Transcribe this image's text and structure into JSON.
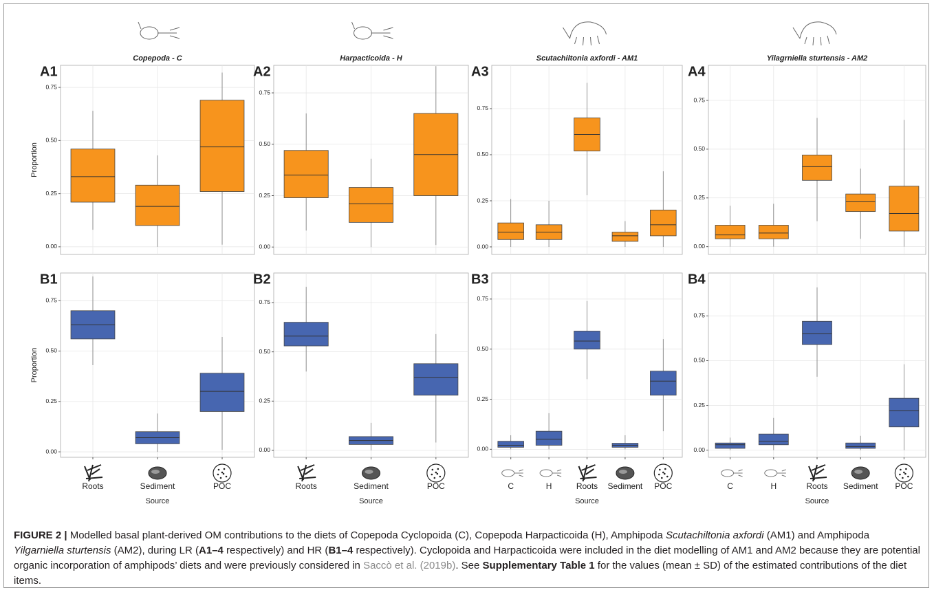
{
  "chart_data": [
    {
      "type": "box",
      "panel": "A1",
      "title": "Copepoda - C",
      "ylabel": "Proportion",
      "color": "#f7941d",
      "categories": [
        "Roots",
        "Sediment",
        "POC"
      ],
      "ylim": [
        -0.036,
        0.854
      ],
      "yticks": [
        {
          "value": 0,
          "label": "0.00"
        },
        {
          "value": 0.25,
          "label": "0.25"
        },
        {
          "value": 0.5,
          "label": "0.50"
        },
        {
          "value": 0.75,
          "label": "0.75"
        }
      ],
      "boxes": [
        {
          "low": 0.08,
          "q1": 0.21,
          "median": 0.33,
          "q3": 0.46,
          "high": 0.64
        },
        {
          "low": 0.0,
          "q1": 0.1,
          "median": 0.19,
          "q3": 0.29,
          "high": 0.43
        },
        {
          "low": 0.01,
          "q1": 0.26,
          "median": 0.47,
          "q3": 0.69,
          "high": 0.82
        }
      ]
    },
    {
      "type": "box",
      "panel": "A2",
      "title": "Harpacticoida - H",
      "color": "#f7941d",
      "categories": [
        "Roots",
        "Sediment",
        "POC"
      ],
      "ylim": [
        -0.036,
        0.884
      ],
      "yticks": [
        {
          "value": 0,
          "label": "0.00"
        },
        {
          "value": 0.25,
          "label": "0.25"
        },
        {
          "value": 0.5,
          "label": "0.50"
        },
        {
          "value": 0.75,
          "label": "0.75"
        }
      ],
      "boxes": [
        {
          "low": 0.08,
          "q1": 0.24,
          "median": 0.35,
          "q3": 0.47,
          "high": 0.65
        },
        {
          "low": 0.0,
          "q1": 0.12,
          "median": 0.21,
          "q3": 0.29,
          "high": 0.43
        },
        {
          "low": 0.01,
          "q1": 0.25,
          "median": 0.45,
          "q3": 0.65,
          "high": 0.88
        }
      ]
    },
    {
      "type": "box",
      "panel": "A3",
      "title": "Scutachiltonia axfordi - AM1",
      "color": "#f7941d",
      "categories": [
        "C",
        "H",
        "Roots",
        "Sediment",
        "POC"
      ],
      "ylim": [
        -0.041,
        0.985
      ],
      "yticks": [
        {
          "value": 0,
          "label": "0.00"
        },
        {
          "value": 0.25,
          "label": "0.25"
        },
        {
          "value": 0.5,
          "label": "0.50"
        },
        {
          "value": 0.75,
          "label": "0.75"
        }
      ],
      "boxes": [
        {
          "low": 0.0,
          "q1": 0.04,
          "median": 0.08,
          "q3": 0.13,
          "high": 0.26
        },
        {
          "low": 0.0,
          "q1": 0.04,
          "median": 0.08,
          "q3": 0.12,
          "high": 0.25
        },
        {
          "low": 0.28,
          "q1": 0.52,
          "median": 0.61,
          "q3": 0.7,
          "high": 0.89
        },
        {
          "low": 0.0,
          "q1": 0.03,
          "median": 0.06,
          "q3": 0.08,
          "high": 0.14
        },
        {
          "low": 0.0,
          "q1": 0.06,
          "median": 0.12,
          "q3": 0.2,
          "high": 0.41
        }
      ]
    },
    {
      "type": "box",
      "panel": "A4",
      "title": "Yilagrniella sturtensis - AM2",
      "color": "#f7941d",
      "categories": [
        "C",
        "H",
        "Roots",
        "Sediment",
        "POC"
      ],
      "ylim": [
        -0.04,
        0.93
      ],
      "yticks": [
        {
          "value": 0,
          "label": "0.00"
        },
        {
          "value": 0.25,
          "label": "0.25"
        },
        {
          "value": 0.5,
          "label": "0.50"
        },
        {
          "value": 0.75,
          "label": "0.75"
        }
      ],
      "boxes": [
        {
          "low": 0.0,
          "q1": 0.04,
          "median": 0.06,
          "q3": 0.11,
          "high": 0.21
        },
        {
          "low": 0.0,
          "q1": 0.04,
          "median": 0.07,
          "q3": 0.11,
          "high": 0.22
        },
        {
          "low": 0.13,
          "q1": 0.34,
          "median": 0.41,
          "q3": 0.47,
          "high": 0.66
        },
        {
          "low": 0.04,
          "q1": 0.18,
          "median": 0.23,
          "q3": 0.27,
          "high": 0.4
        },
        {
          "low": 0.0,
          "q1": 0.08,
          "median": 0.17,
          "q3": 0.31,
          "high": 0.65
        }
      ]
    },
    {
      "type": "box",
      "panel": "B1",
      "ylabel": "Proportion",
      "xlabel": "Source",
      "color": "#4766b0",
      "categories": [
        "Roots",
        "Sediment",
        "POC"
      ],
      "ylim": [
        -0.027,
        0.887
      ],
      "yticks": [
        {
          "value": 0,
          "label": "0.00"
        },
        {
          "value": 0.25,
          "label": "0.25"
        },
        {
          "value": 0.5,
          "label": "0.50"
        },
        {
          "value": 0.75,
          "label": "0.75"
        }
      ],
      "boxes": [
        {
          "low": 0.43,
          "q1": 0.56,
          "median": 0.63,
          "q3": 0.7,
          "high": 0.87
        },
        {
          "low": 0.0,
          "q1": 0.04,
          "median": 0.07,
          "q3": 0.1,
          "high": 0.19
        },
        {
          "low": 0.01,
          "q1": 0.2,
          "median": 0.3,
          "q3": 0.39,
          "high": 0.57
        }
      ]
    },
    {
      "type": "box",
      "panel": "B2",
      "xlabel": "Source",
      "color": "#4766b0",
      "categories": [
        "Roots",
        "Sediment",
        "POC"
      ],
      "ylim": [
        -0.035,
        0.9
      ],
      "yticks": [
        {
          "value": 0,
          "label": "0.00"
        },
        {
          "value": 0.25,
          "label": "0.25"
        },
        {
          "value": 0.5,
          "label": "0.50"
        },
        {
          "value": 0.75,
          "label": "0.75"
        }
      ],
      "boxes": [
        {
          "low": 0.4,
          "q1": 0.53,
          "median": 0.58,
          "q3": 0.65,
          "high": 0.83
        },
        {
          "low": 0.0,
          "q1": 0.03,
          "median": 0.05,
          "q3": 0.07,
          "high": 0.14
        },
        {
          "low": 0.04,
          "q1": 0.28,
          "median": 0.37,
          "q3": 0.44,
          "high": 0.59
        }
      ]
    },
    {
      "type": "box",
      "panel": "B3",
      "xlabel": "Source",
      "color": "#4766b0",
      "categories": [
        "C",
        "H",
        "Roots",
        "Sediment",
        "POC"
      ],
      "ylim": [
        -0.04,
        0.88
      ],
      "yticks": [
        {
          "value": 0,
          "label": "0.00"
        },
        {
          "value": 0.25,
          "label": "0.25"
        },
        {
          "value": 0.5,
          "label": "0.50"
        },
        {
          "value": 0.75,
          "label": "0.75"
        }
      ],
      "boxes": [
        {
          "low": 0.0,
          "q1": 0.01,
          "median": 0.02,
          "q3": 0.04,
          "high": 0.07
        },
        {
          "low": 0.0,
          "q1": 0.02,
          "median": 0.05,
          "q3": 0.09,
          "high": 0.18
        },
        {
          "low": 0.35,
          "q1": 0.5,
          "median": 0.54,
          "q3": 0.59,
          "high": 0.74
        },
        {
          "low": 0.0,
          "q1": 0.01,
          "median": 0.02,
          "q3": 0.03,
          "high": 0.07
        },
        {
          "low": 0.09,
          "q1": 0.27,
          "median": 0.34,
          "q3": 0.39,
          "high": 0.55
        }
      ]
    },
    {
      "type": "box",
      "panel": "B4",
      "xlabel": "Source",
      "color": "#4766b0",
      "categories": [
        "C",
        "H",
        "Roots",
        "Sediment",
        "POC"
      ],
      "ylim": [
        -0.04,
        0.99
      ],
      "yticks": [
        {
          "value": 0,
          "label": "0.00"
        },
        {
          "value": 0.25,
          "label": "0.25"
        },
        {
          "value": 0.5,
          "label": "0.50"
        },
        {
          "value": 0.75,
          "label": "0.75"
        }
      ],
      "boxes": [
        {
          "low": 0.0,
          "q1": 0.01,
          "median": 0.03,
          "q3": 0.04,
          "high": 0.07
        },
        {
          "low": 0.0,
          "q1": 0.03,
          "median": 0.05,
          "q3": 0.09,
          "high": 0.18
        },
        {
          "low": 0.41,
          "q1": 0.59,
          "median": 0.65,
          "q3": 0.72,
          "high": 0.91
        },
        {
          "low": 0.0,
          "q1": 0.01,
          "median": 0.02,
          "q3": 0.04,
          "high": 0.08
        },
        {
          "low": 0.0,
          "q1": 0.13,
          "median": 0.22,
          "q3": 0.29,
          "high": 0.48
        }
      ]
    }
  ],
  "caption": [
    {
      "text": "FIGURE 2 |",
      "style": "bold"
    },
    {
      "text": " Modelled basal plant-derived OM contributions to the diets of Copepoda Cyclopoida (C), Copepoda Harpacticoida (H), Amphipoda "
    },
    {
      "text": "Scutachiltonia axfordi",
      "style": "italic"
    },
    {
      "text": " (AM1) and Amphipoda "
    },
    {
      "text": "Yilgarniella sturtensis",
      "style": "italic"
    },
    {
      "text": " (AM2), during LR ("
    },
    {
      "text": "A1–4",
      "style": "bold"
    },
    {
      "text": " respectively) and HR ("
    },
    {
      "text": "B1–4",
      "style": "bold"
    },
    {
      "text": " respectively). Cyclopoida and Harpacticoida were included in the diet modelling of AM1 and AM2 because they are potential organic incorporation of amphipods’ diets and were previously considered in "
    },
    {
      "text": "Saccò et al. (2019b)",
      "style": "link"
    },
    {
      "text": ". See "
    },
    {
      "text": "Supplementary Table 1",
      "style": "bold"
    },
    {
      "text": " for the values (mean ± SD) of the estimated contributions of the diet items."
    }
  ]
}
